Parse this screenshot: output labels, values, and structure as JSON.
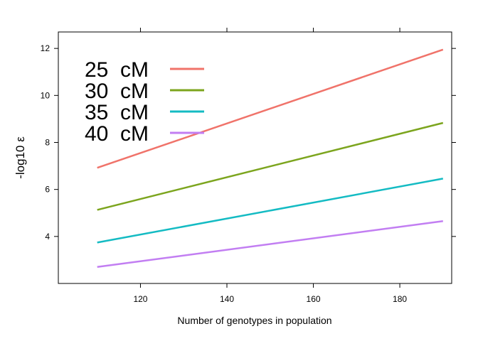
{
  "chart_data": {
    "type": "line",
    "title": "",
    "xlabel": "Number of genotypes in population",
    "ylabel": "-log10 ε",
    "xlim": [
      101,
      192
    ],
    "ylim": [
      2,
      12.7
    ],
    "xticks": [
      120,
      140,
      160,
      180
    ],
    "yticks": [
      4,
      6,
      8,
      10,
      12
    ],
    "x": [
      110,
      190
    ],
    "grid": false,
    "legend_position": "top-left",
    "series": [
      {
        "name": "25  cM",
        "color": "#f0736a",
        "x": [
          110,
          190
        ],
        "values": [
          6.92,
          11.95
        ]
      },
      {
        "name": "30  cM",
        "color": "#7ca51e",
        "x": [
          110,
          190
        ],
        "values": [
          5.13,
          8.83
        ]
      },
      {
        "name": "35  cM",
        "color": "#14bbc3",
        "x": [
          110,
          190
        ],
        "values": [
          3.74,
          6.46
        ]
      },
      {
        "name": "40  cM",
        "color": "#c27ef2",
        "x": [
          110,
          190
        ],
        "values": [
          2.7,
          4.65
        ]
      }
    ]
  }
}
